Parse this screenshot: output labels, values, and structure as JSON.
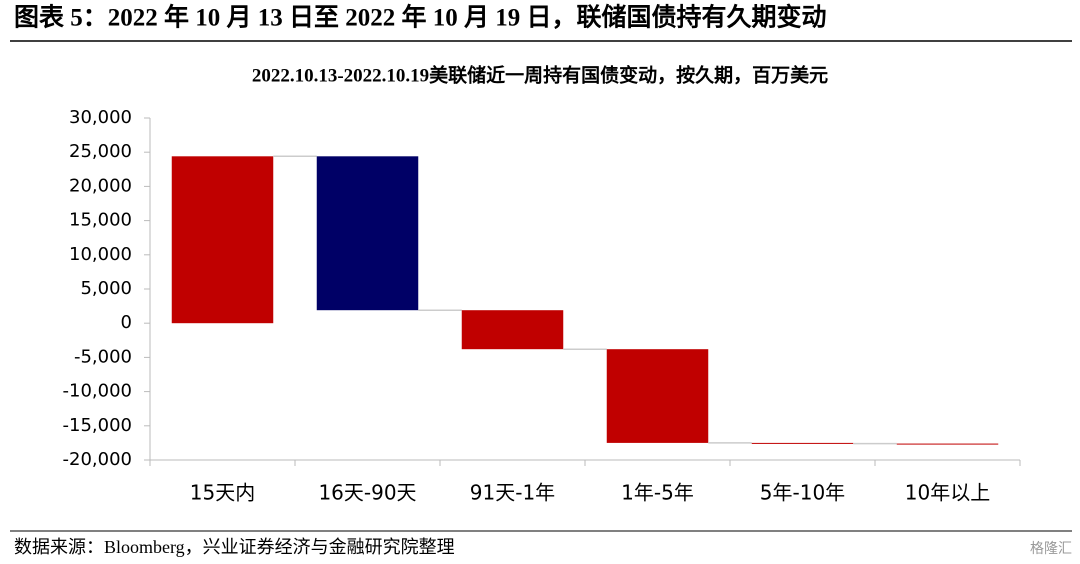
{
  "header": {
    "title": "图表 5：2022 年 10 月 13 日至 2022 年 10 月 19 日，联储国债持有久期变动"
  },
  "chart_data": {
    "type": "waterfall",
    "title": "2022.10.13-2022.10.19美联储近一周持有国债变动，按久期，百万美元",
    "categories": [
      "15天内",
      "16天-90天",
      "91天-1年",
      "1年-5年",
      "5年-10年",
      "10年以上"
    ],
    "values": [
      24400,
      -22500,
      -5700,
      -13700,
      -100,
      -100
    ],
    "colors": [
      "#c00000",
      "#000066",
      "#c00000",
      "#c00000",
      "#c00000",
      "#c00000"
    ],
    "ylim": [
      -20000,
      30000
    ],
    "yticks": [
      {
        "value": -20000,
        "label": "-20,000"
      },
      {
        "value": -15000,
        "label": "-15,000"
      },
      {
        "value": -10000,
        "label": "-10,000"
      },
      {
        "value": -5000,
        "label": "-5,000"
      },
      0,
      {
        "value": 5000,
        "label": "5,000"
      },
      {
        "value": 10000,
        "label": "10,000"
      },
      {
        "value": 15000,
        "label": "15,000"
      },
      {
        "value": 20000,
        "label": "20,000"
      },
      {
        "value": 25000,
        "label": "25,000"
      },
      {
        "value": 30000,
        "label": "30,000"
      }
    ],
    "grid": false
  },
  "footer": {
    "source": "数据来源：Bloomberg，兴业证券经济与金融研究院整理",
    "watermark": "格隆汇"
  }
}
